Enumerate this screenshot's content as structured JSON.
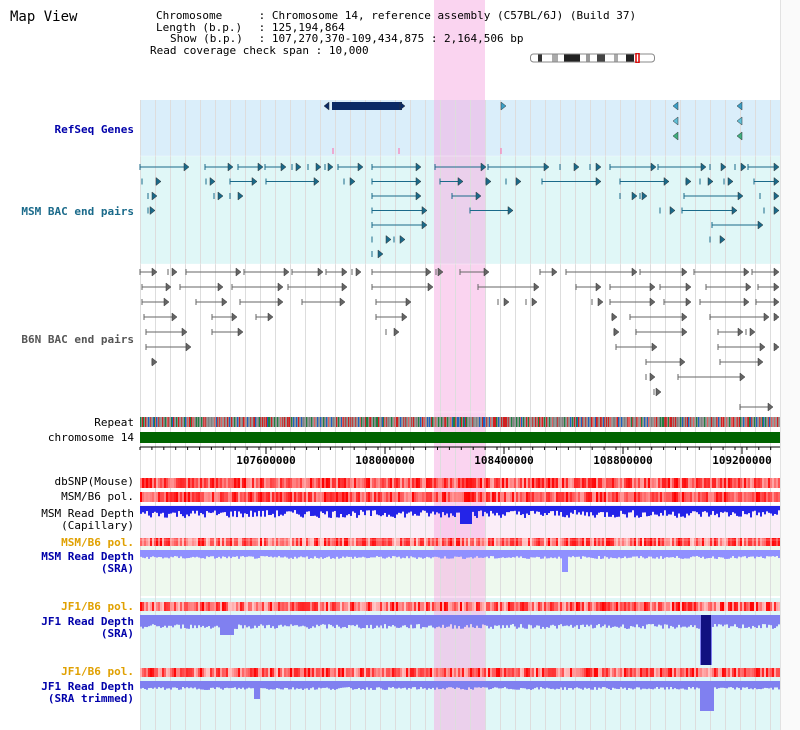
{
  "header": {
    "title": "Map View",
    "chromosome_label": "Chromosome",
    "chromosome_value": "Chromosome 14, reference assembly (C57BL/6J) (Build 37)",
    "length_label": "Length (b.p.)",
    "length_value": "125,194,864",
    "show_label": "Show (b.p.)",
    "show_value": "107,270,370-109,434,875 : 2,164,506 bp",
    "coverage_label": "Read coverage check span",
    "coverage_value": "10,000"
  },
  "tracks": {
    "refseq": "RefSeq Genes",
    "msm_bac": "MSM BAC end pairs",
    "b6n_bac": "B6N BAC end pairs",
    "repeat": "Repeat",
    "chromosome": "chromosome 14",
    "dbsnp": "dbSNP(Mouse)",
    "msm_b6_pol_1": "MSM/B6 pol.",
    "msm_depth_cap_1": "MSM Read Depth",
    "msm_depth_cap_2": "(Capillary)",
    "msm_b6_pol_2": "MSM/B6 pol.",
    "msm_depth_sra_1": "MSM Read Depth",
    "msm_depth_sra_2": "(SRA)",
    "jf1_b6_pol_1": "JF1/B6 pol.",
    "jf1_depth_sra_1": "JF1 Read Depth",
    "jf1_depth_sra_2": "(SRA)",
    "jf1_b6_pol_2": "JF1/B6 pol.",
    "jf1_depth_trim_1": "JF1 Read Depth",
    "jf1_depth_trim_2": "(SRA trimmed)"
  },
  "axis": {
    "ticks": [
      "107600000",
      "108000000",
      "108400000",
      "108800000",
      "109200000"
    ]
  },
  "colors": {
    "refseq_bg": "#daeefa",
    "msm_bg": "#e0f7f7",
    "b6n_bg": "#ffffff",
    "highlight": "#f5aae1",
    "chromosome": "#006400",
    "depth_dark": "#2020ee",
    "depth_light": "#8888ff"
  }
}
